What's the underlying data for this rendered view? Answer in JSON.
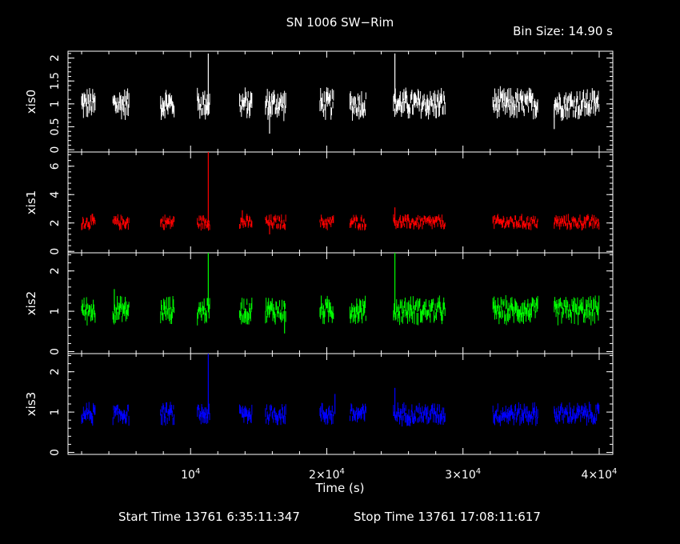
{
  "chart_data": {
    "type": "line",
    "title": "SN 1006 SW−Rim",
    "bin_size_label": "Bin Size: 14.90 s",
    "xlabel": "Time (s)",
    "xlim": [
      1000,
      41000
    ],
    "x_tick_labels": [
      {
        "x": 10000,
        "base": "10",
        "exp": "4"
      },
      {
        "x": 20000,
        "base": "2×10",
        "exp": "4"
      },
      {
        "x": 30000,
        "base": "3×10",
        "exp": "4"
      },
      {
        "x": 40000,
        "base": "4×10",
        "exp": "4"
      }
    ],
    "footer": {
      "start_time": "Start Time 13761  6:35:11:347",
      "stop_time": "Stop Time 13761 17:08:11:617"
    },
    "good_time_intervals": [
      [
        2000,
        3000
      ],
      [
        4300,
        5500
      ],
      [
        7800,
        8800
      ],
      [
        10500,
        11400
      ],
      [
        13600,
        14500
      ],
      [
        15500,
        17000
      ],
      [
        19500,
        20500
      ],
      [
        21700,
        22900
      ],
      [
        24900,
        28700
      ],
      [
        32200,
        35500
      ],
      [
        36700,
        40000
      ]
    ],
    "panels": [
      {
        "name": "xis0",
        "ylabel": "xis0",
        "color": "#ffffff",
        "ylim": [
          -0.05,
          2.15
        ],
        "yticks": [
          0,
          0.5,
          1,
          1.5,
          2
        ],
        "ytick_labels": [
          "0",
          "0.5",
          "1",
          "1.5",
          "2"
        ],
        "baseline": 1.0,
        "scatter": 0.22,
        "spikes": [
          [
            11300,
            2.1
          ],
          [
            25000,
            2.1
          ],
          [
            15800,
            0.35
          ],
          [
            36700,
            0.45
          ]
        ]
      },
      {
        "name": "xis1",
        "ylabel": "xis1",
        "color": "#ff0000",
        "ylim": [
          -0.1,
          7.0
        ],
        "yticks": [
          0,
          2,
          4,
          6
        ],
        "ytick_labels": [
          "0",
          "2",
          "4",
          "6"
        ],
        "baseline": 2.05,
        "scatter": 0.35,
        "spikes": [
          [
            11300,
            7.0
          ],
          [
            13800,
            2.9
          ],
          [
            25000,
            3.1
          ],
          [
            15800,
            1.2
          ]
        ]
      },
      {
        "name": "xis2",
        "ylabel": "xis2",
        "color": "#00ff00",
        "ylim": [
          -0.05,
          2.45
        ],
        "yticks": [
          0,
          1,
          2
        ],
        "ytick_labels": [
          "0",
          "1",
          "2"
        ],
        "baseline": 1.02,
        "scatter": 0.22,
        "spikes": [
          [
            11300,
            2.45
          ],
          [
            25000,
            2.45
          ],
          [
            16900,
            0.45
          ],
          [
            4400,
            1.55
          ]
        ]
      },
      {
        "name": "xis3",
        "ylabel": "xis3",
        "color": "#0000ff",
        "ylim": [
          -0.05,
          2.45
        ],
        "yticks": [
          0,
          1,
          2
        ],
        "ytick_labels": [
          "0",
          "1",
          "2"
        ],
        "baseline": 0.95,
        "scatter": 0.18,
        "spikes": [
          [
            11300,
            2.45
          ],
          [
            25000,
            1.6
          ],
          [
            20600,
            1.45
          ]
        ]
      }
    ]
  }
}
